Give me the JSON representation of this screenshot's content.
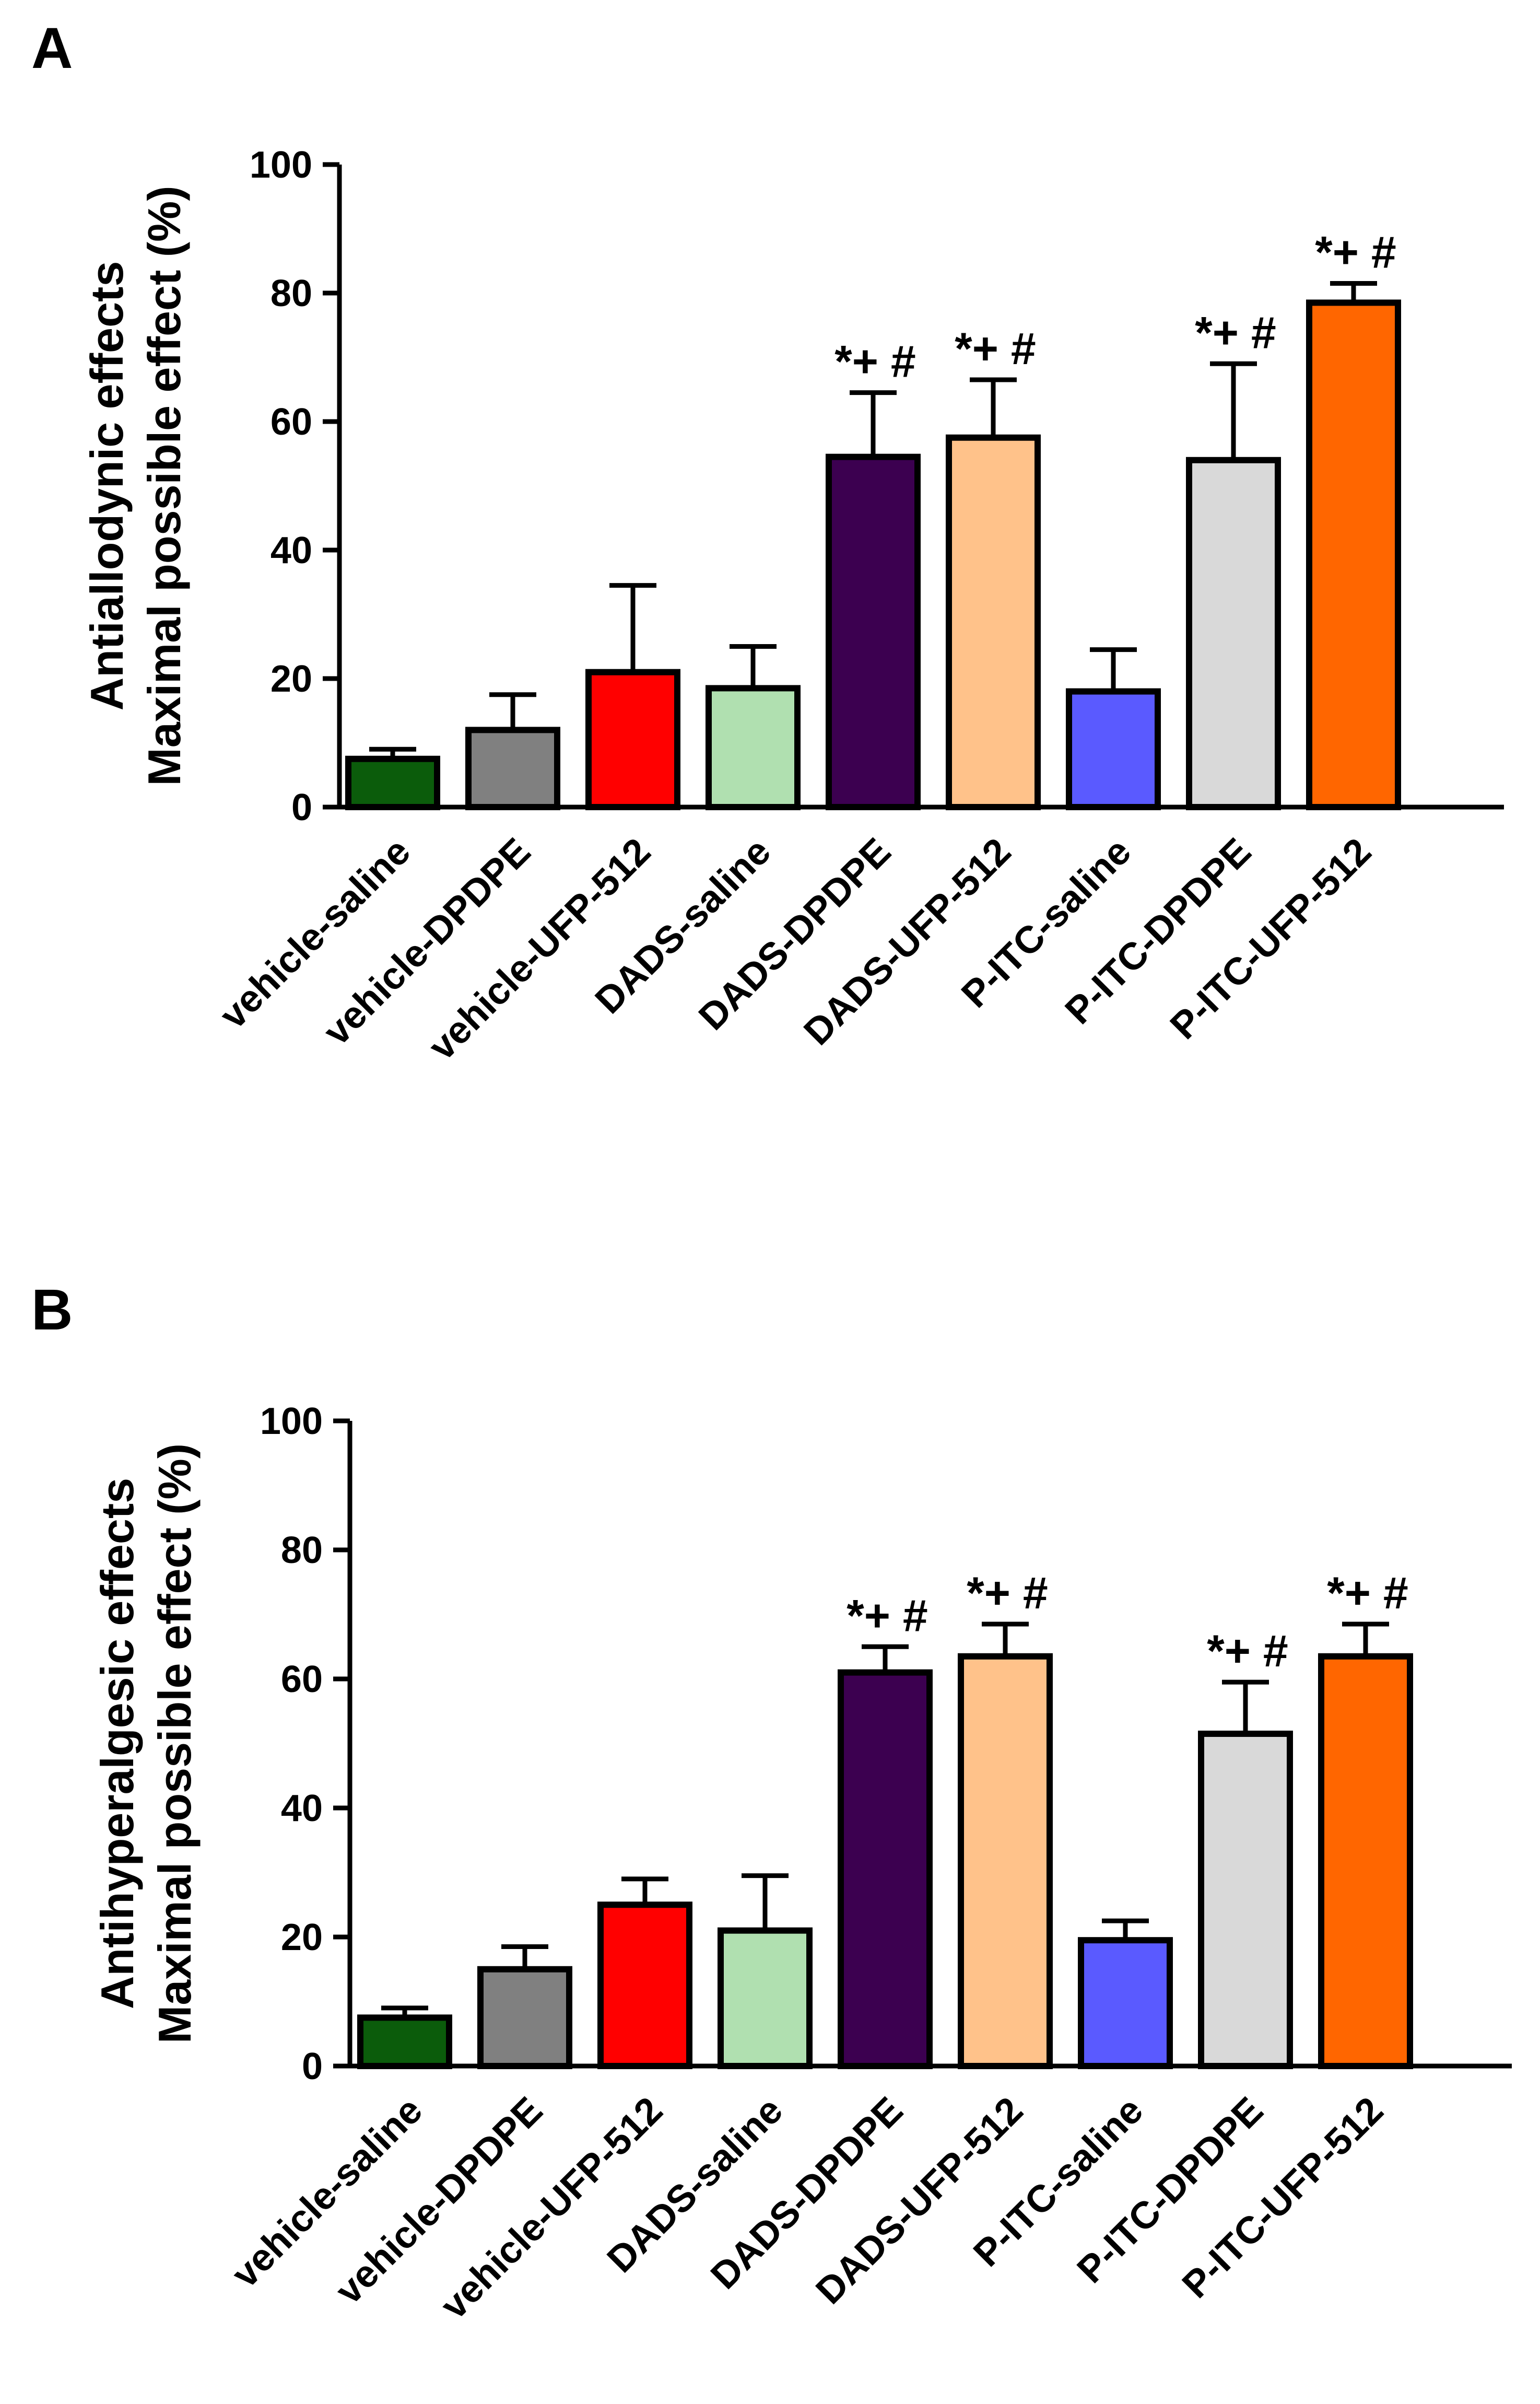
{
  "chart_data": [
    {
      "panel": "A",
      "type": "bar",
      "title": "",
      "ylabel": [
        "Antiallodynic effects",
        "Maximal possible effect (%)"
      ],
      "xlabel": "",
      "ylim": [
        0,
        100
      ],
      "yticks": [
        0,
        20,
        40,
        60,
        80,
        100
      ],
      "grid": false,
      "categories": [
        "vehicle-saline",
        "vehicle-DPDPE",
        "vehicle-UFP-512",
        "DADS-saline",
        "DADS-DPDPE",
        "DADS-UFP-512",
        "P-ITC-saline",
        "P-ITC-DPDPE",
        "P-ITC-UFP-512"
      ],
      "values": [
        7.5,
        12,
        21,
        18.5,
        54.5,
        57.5,
        18,
        54,
        78.5
      ],
      "errors": [
        1.5,
        5.5,
        13.5,
        6.5,
        10,
        9,
        6.5,
        15,
        3
      ],
      "annotations": [
        "",
        "",
        "",
        "",
        "*+ #",
        "*+ #",
        "",
        "*+ #",
        "*+ #"
      ]
    },
    {
      "panel": "B",
      "type": "bar",
      "title": "",
      "ylabel": [
        "Antihyperalgesic effects",
        "Maximal possible effect (%)"
      ],
      "xlabel": "",
      "ylim": [
        0,
        100
      ],
      "yticks": [
        0,
        20,
        40,
        60,
        80,
        100
      ],
      "grid": false,
      "categories": [
        "vehicle-saline",
        "vehicle-DPDPE",
        "vehicle-UFP-512",
        "DADS-saline",
        "DADS-DPDPE",
        "DADS-UFP-512",
        "P-ITC-saline",
        "P-ITC-DPDPE",
        "P-ITC-UFP-512"
      ],
      "values": [
        7.5,
        15,
        25,
        21,
        61,
        63.5,
        19.5,
        51.5,
        63.5
      ],
      "errors": [
        1.5,
        3.5,
        4,
        8.5,
        4,
        5,
        3,
        8,
        5
      ],
      "annotations": [
        "",
        "",
        "",
        "",
        "*+ #",
        "*+ #",
        "",
        "*+ #",
        "*+ #"
      ]
    }
  ],
  "bar_colors": [
    "#0b5c0b",
    "#808080",
    "#ff0000",
    "#b0e0b0",
    "#3c0050",
    "#ffc28a",
    "#5a5aff",
    "#d9d9d9",
    "#ff6600"
  ],
  "panel_letters": {
    "a": "A",
    "b": "B"
  }
}
